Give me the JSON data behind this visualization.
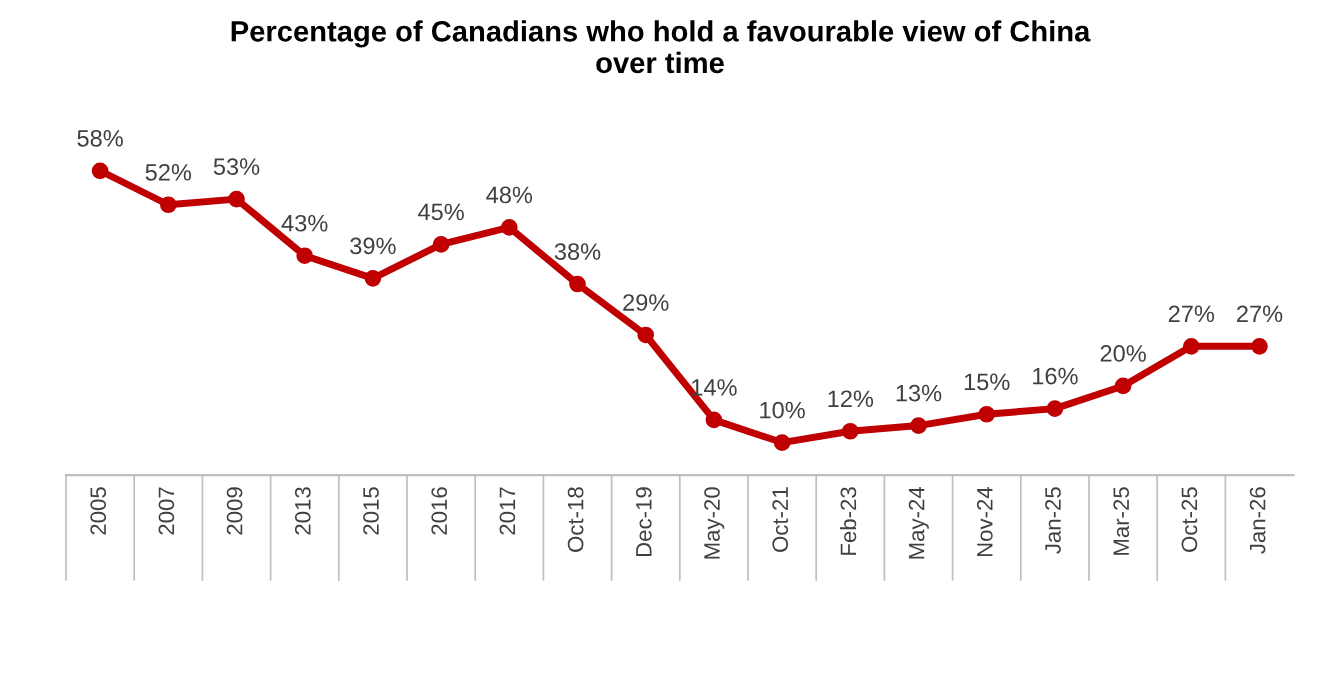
{
  "chart_data": {
    "type": "line",
    "title": "Percentage of Canadians who hold a favourable view of China\nover time",
    "categories": [
      "2005",
      "2007",
      "2009",
      "2013",
      "2015",
      "2016",
      "2017",
      "Oct-18",
      "Dec-19",
      "May-20",
      "Oct-21",
      "Feb-23",
      "May-24",
      "Nov-24",
      "Jan-25",
      "Mar-25",
      "Oct-25",
      "Jan-26"
    ],
    "series": [
      {
        "color": "#c00000",
        "values": [
          58,
          52,
          53,
          43,
          39,
          45,
          48,
          38,
          29,
          14,
          10,
          12,
          13,
          15,
          16,
          20,
          27,
          27
        ],
        "value_labels": [
          "58%",
          "52%",
          "53%",
          "43%",
          "39%",
          "45%",
          "48%",
          "38%",
          "29%",
          "14%",
          "10%",
          "12%",
          "13%",
          "15%",
          "16%",
          "20%",
          "27%",
          "27%"
        ]
      }
    ],
    "grid": false,
    "legend": false,
    "marker": "circle",
    "line_style": "solid"
  }
}
